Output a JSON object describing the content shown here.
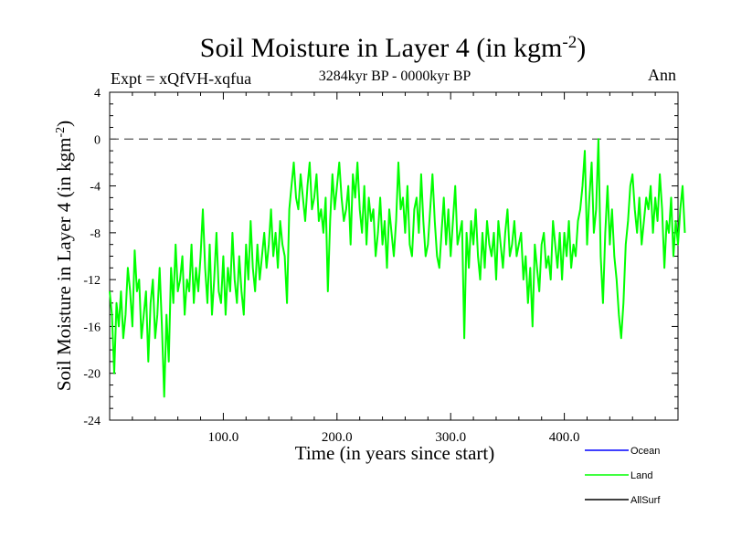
{
  "chart_data": {
    "type": "line",
    "title": "Soil Moisture in Layer 4 (in kgm",
    "title_sup": "-2",
    "title_close": ")",
    "subtitle": "3284kyr BP - 0000kyr BP",
    "expt_label": "Expt = xQfVH-xqfua",
    "season_label": "Ann",
    "xlabel": "Time (in years since start)",
    "ylabel": "Soil Moisture in Layer 4 (in kgm",
    "ylabel_sup": "-2",
    "ylabel_close": ")",
    "xlim": [
      0,
      500
    ],
    "ylim": [
      -24,
      4
    ],
    "x_ticks": [
      100,
      200,
      300,
      400
    ],
    "x_tick_labels": [
      "100.0",
      "200.0",
      "300.0",
      "400.0"
    ],
    "y_ticks": [
      4,
      0,
      -4,
      -8,
      -12,
      -16,
      -20,
      -24
    ],
    "y_tick_labels": [
      "4",
      "0",
      "-4",
      "-8",
      "-12",
      "-16",
      "-20",
      "-24"
    ],
    "reference_line": 0,
    "legend": [
      {
        "name": "Ocean",
        "color": "#0000ff"
      },
      {
        "name": "Land",
        "color": "#00ff00"
      },
      {
        "name": "AllSurf",
        "color": "#000000"
      }
    ],
    "series": [
      {
        "name": "Land",
        "color": "#00ff00",
        "x_start": 0,
        "x_step": 2,
        "values": [
          -13,
          -15,
          -20,
          -14,
          -16,
          -13,
          -17,
          -15,
          -11,
          -13,
          -16,
          -9.5,
          -13,
          -12,
          -17,
          -15,
          -13,
          -19,
          -14,
          -12,
          -17,
          -15,
          -11,
          -16,
          -22,
          -15,
          -19,
          -11,
          -14,
          -9,
          -13,
          -12,
          -10,
          -15,
          -12,
          -13,
          -9,
          -14,
          -11,
          -13,
          -10,
          -6,
          -11,
          -14,
          -9,
          -15,
          -12,
          -8,
          -13,
          -14,
          -10,
          -15,
          -11,
          -13,
          -8,
          -12,
          -14,
          -10,
          -13,
          -15,
          -9,
          -12,
          -7,
          -11,
          -13,
          -9,
          -12,
          -10,
          -8,
          -11,
          -9,
          -6,
          -10,
          -8,
          -11,
          -7,
          -9,
          -10,
          -14,
          -6,
          -4,
          -2,
          -5,
          -6,
          -3,
          -5,
          -7,
          -4,
          -2,
          -6,
          -5,
          -3,
          -7,
          -6,
          -8,
          -5,
          -13,
          -7,
          -3,
          -6,
          -4,
          -2,
          -5,
          -7,
          -6,
          -4,
          -9,
          -3,
          -5,
          -2,
          -6,
          -8,
          -4,
          -9,
          -5,
          -7,
          -6,
          -10,
          -8,
          -5,
          -9,
          -7,
          -11,
          -6,
          -8,
          -10,
          -7,
          -2,
          -6,
          -5,
          -8,
          -4,
          -9,
          -10,
          -6,
          -5,
          -8,
          -3,
          -7,
          -10,
          -9,
          -6,
          -3,
          -7,
          -10,
          -11,
          -8,
          -5,
          -9,
          -6,
          -10,
          -7,
          -4,
          -9,
          -8,
          -7,
          -17,
          -8,
          -11,
          -7,
          -9,
          -6,
          -10,
          -12,
          -8,
          -11,
          -7,
          -9,
          -10,
          -8,
          -12,
          -7,
          -9,
          -11,
          -8,
          -6,
          -10,
          -9,
          -7,
          -10,
          -9,
          -8,
          -12,
          -10,
          -14,
          -11,
          -16,
          -9,
          -11,
          -13,
          -9,
          -8,
          -11,
          -10,
          -12,
          -7,
          -9,
          -11,
          -8,
          -12,
          -8,
          -10,
          -7,
          -11,
          -9,
          -10,
          -7,
          -6,
          -4,
          -1,
          -9,
          -5,
          -2,
          -8,
          -6,
          0,
          -10,
          -14,
          -8,
          -4,
          -9,
          -6,
          -10,
          -12,
          -15,
          -17,
          -14,
          -9,
          -7,
          -4,
          -3,
          -6,
          -8,
          -5,
          -9,
          -7,
          -5,
          -6,
          -4,
          -8,
          -5,
          -7,
          -3,
          -6,
          -11,
          -7,
          -8,
          -5,
          -10,
          -7,
          -9,
          -6,
          -4,
          -8
        ]
      }
    ]
  }
}
